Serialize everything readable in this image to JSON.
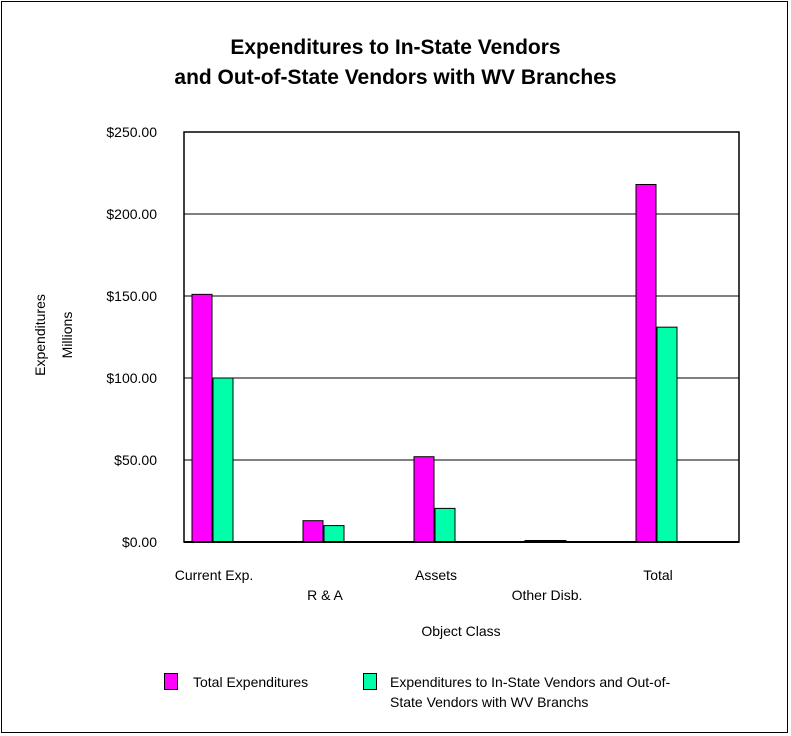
{
  "chart_data": {
    "type": "bar",
    "title_line1": "Expenditures to In-State Vendors",
    "title_line2": "and Out-of-State Vendors with WV Branches",
    "xlabel": "Object Class",
    "ylabel_line1": "Expenditures",
    "ylabel_line2": "Millions",
    "ylim": [
      0,
      250
    ],
    "yticks": [
      "$0.00",
      "$50.00",
      "$100.00",
      "$150.00",
      "$200.00",
      "$250.00"
    ],
    "categories": [
      "Current Exp.",
      "R & A",
      "Assets",
      "Other Disb.",
      "Total"
    ],
    "series": [
      {
        "name": "Total Expenditures",
        "color": "#ff00ff",
        "values": [
          151,
          13,
          52,
          0,
          218
        ]
      },
      {
        "name": "Expenditures to In-State Vendors and Out-of-State Vendors with WV Branchs",
        "color": "#00ffaa",
        "values": [
          100,
          10,
          20.5,
          0,
          131
        ]
      }
    ],
    "legend_line1": "Expenditures to In-State Vendors and Out-of-",
    "legend_line2": "State Vendors with WV Branchs",
    "grid": true,
    "legend_position": "bottom"
  }
}
